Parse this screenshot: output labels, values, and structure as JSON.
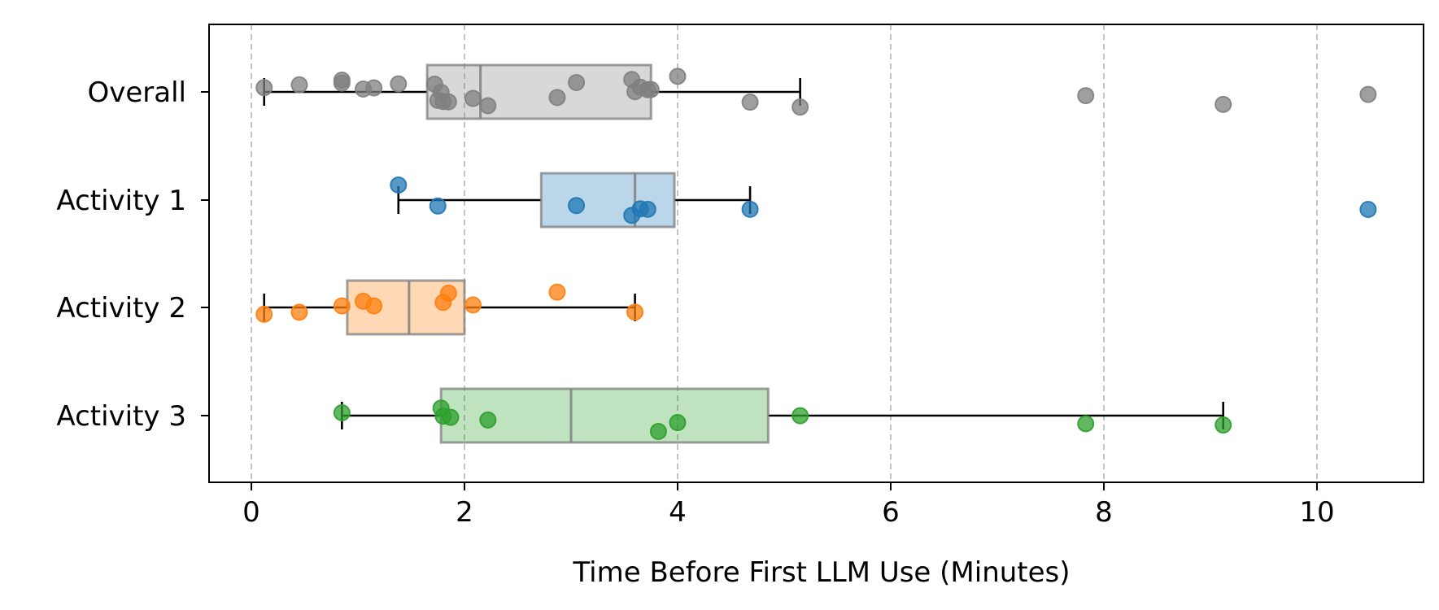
{
  "chart_data": {
    "type": "box",
    "title": "",
    "xlabel": "Time Before First LLM Use (Minutes)",
    "ylabel": "",
    "xlim": [
      -0.4,
      11.0
    ],
    "xticks": [
      0,
      2,
      4,
      6,
      8,
      10
    ],
    "grid": "vertical-dashed",
    "categories": [
      "Overall",
      "Activity 1",
      "Activity 2",
      "Activity 3"
    ],
    "series": [
      {
        "color": "#7f7f7f",
        "whisker_low": 0.12,
        "q1": 1.65,
        "median": 2.15,
        "q3": 3.75,
        "whisker_high": 5.15,
        "points": [
          0.12,
          0.45,
          0.85,
          0.85,
          1.05,
          1.15,
          1.38,
          1.72,
          1.75,
          1.78,
          1.8,
          1.85,
          2.08,
          2.22,
          2.87,
          3.05,
          3.57,
          3.6,
          3.65,
          3.72,
          3.75,
          4.0,
          4.68,
          5.15,
          7.83,
          9.12,
          10.48
        ]
      },
      {
        "color": "#1f77b4",
        "whisker_low": 1.38,
        "q1": 2.72,
        "median": 3.6,
        "q3": 3.97,
        "whisker_high": 4.68,
        "points": [
          1.38,
          1.75,
          3.05,
          3.57,
          3.65,
          3.72,
          4.68,
          10.48
        ]
      },
      {
        "color": "#ff7f0e",
        "whisker_low": 0.12,
        "q1": 0.9,
        "median": 1.48,
        "q3": 2.0,
        "whisker_high": 3.6,
        "points": [
          0.12,
          0.45,
          0.85,
          1.05,
          1.15,
          1.8,
          1.85,
          2.08,
          2.87,
          3.6
        ]
      },
      {
        "color": "#2ca02c",
        "whisker_low": 0.85,
        "q1": 1.78,
        "median": 3.0,
        "q3": 4.85,
        "whisker_high": 9.12,
        "points": [
          0.85,
          1.78,
          1.8,
          1.87,
          2.22,
          3.82,
          4.0,
          5.15,
          7.83,
          9.12
        ]
      }
    ]
  }
}
